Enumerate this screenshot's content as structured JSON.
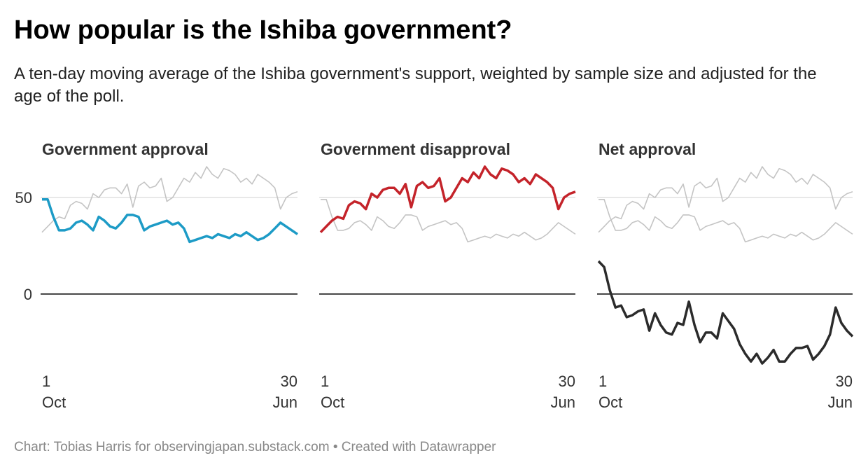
{
  "title": "How popular is the Ishiba government?",
  "subtitle": "A ten-day moving average of the Ishiba government's support, weighted by sample size and adjusted for the age of the poll.",
  "source": "Chart: Tobias Harris for observingjapan.substack.com • Created with Datawrapper",
  "chart_data": {
    "type": "line",
    "x": [
      "1 Oct",
      null,
      null,
      null,
      null,
      null,
      null,
      null,
      null,
      null,
      null,
      null,
      null,
      null,
      null,
      null,
      null,
      null,
      null,
      null,
      null,
      null,
      null,
      null,
      null,
      null,
      null,
      null,
      null,
      null,
      null,
      null,
      null,
      null,
      null,
      null,
      null,
      null,
      null,
      null,
      null,
      null,
      null,
      null,
      null,
      "30 Jun"
    ],
    "series": [
      {
        "name": "Government approval",
        "color": "#1d9bc6",
        "values": [
          49,
          49,
          40,
          33,
          33,
          34,
          37,
          38,
          36,
          33,
          40,
          38,
          35,
          34,
          37,
          41,
          41,
          40,
          33,
          35,
          36,
          37,
          38,
          36,
          37,
          34,
          27,
          28,
          29,
          30,
          29,
          31,
          30,
          29,
          31,
          30,
          32,
          30,
          28,
          29,
          31,
          34,
          37,
          35,
          33,
          31
        ]
      },
      {
        "name": "Government disapproval",
        "color": "#c4232a",
        "values": [
          32,
          35,
          38,
          40,
          39,
          46,
          48,
          47,
          44,
          52,
          50,
          54,
          55,
          55,
          52,
          57,
          45,
          56,
          58,
          55,
          56,
          60,
          48,
          50,
          55,
          60,
          58,
          63,
          60,
          66,
          62,
          60,
          65,
          64,
          62,
          58,
          60,
          57,
          62,
          60,
          58,
          55,
          44,
          50,
          52,
          53
        ]
      },
      {
        "name": "Net approval",
        "color": "#2b2b2b",
        "values": [
          17,
          14,
          2,
          -7,
          -6,
          -12,
          -11,
          -9,
          -8,
          -19,
          -10,
          -16,
          -20,
          -21,
          -15,
          -16,
          -4,
          -16,
          -25,
          -20,
          -20,
          -23,
          -10,
          -14,
          -18,
          -26,
          -31,
          -35,
          -31,
          -36,
          -33,
          -29,
          -35,
          -35,
          -31,
          -28,
          -28,
          -27,
          -34,
          -31,
          -27,
          -21,
          -7,
          -15,
          -19,
          -22
        ]
      }
    ],
    "context_color": "#c4c4c4",
    "ylim": [
      -40,
      70
    ],
    "yticks": [
      0,
      50
    ],
    "grid": true
  }
}
